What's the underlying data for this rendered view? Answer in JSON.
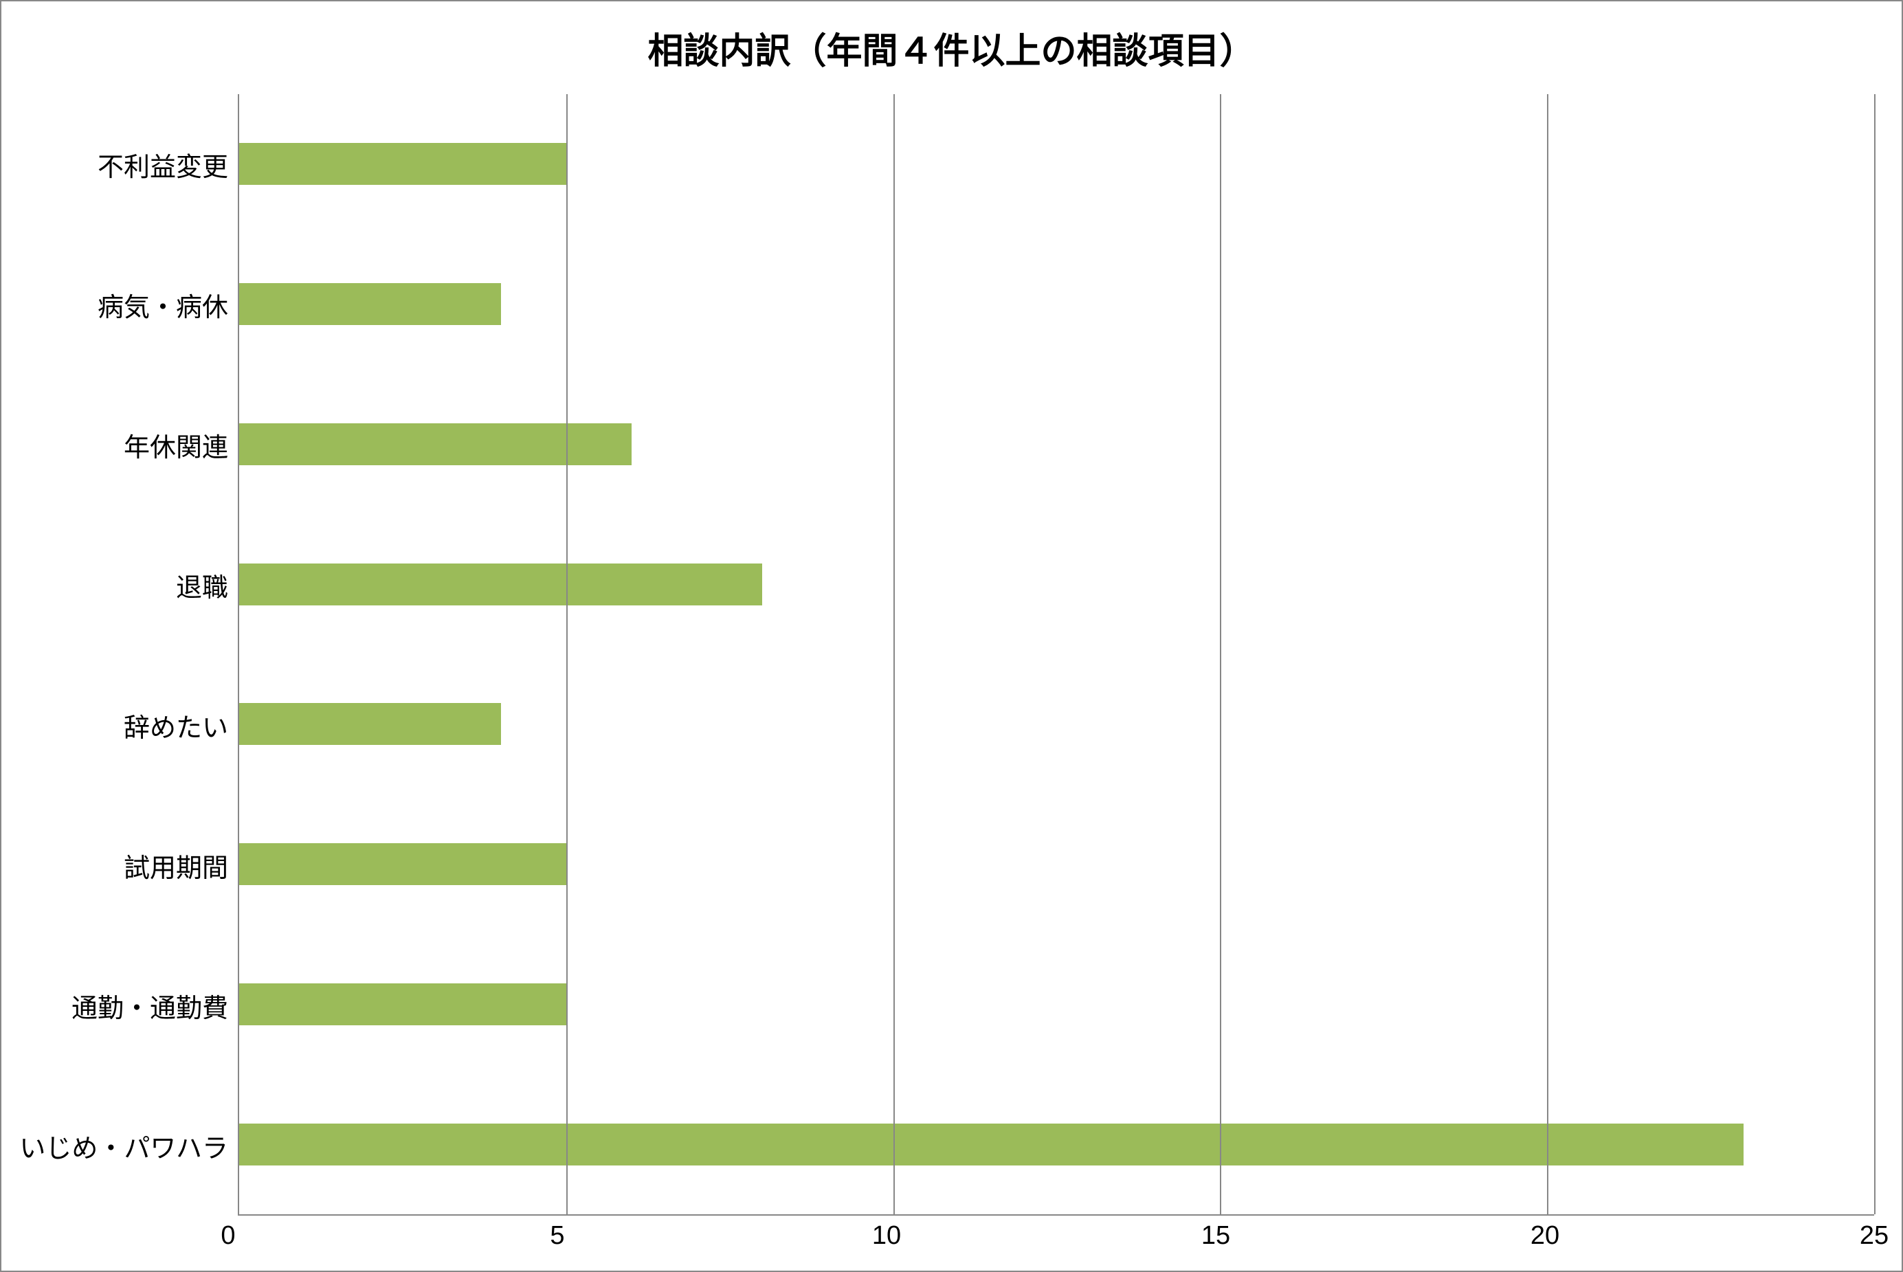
{
  "chart": {
    "type": "bar-horizontal",
    "title": "相談内訳（年間４件以上の相談項目）",
    "title_fontsize": 52,
    "label_fontsize": 38,
    "tick_fontsize": 38,
    "background_color": "#ffffff",
    "border_color": "#888888",
    "grid_color": "#878787",
    "bar_color": "#9bbb59",
    "text_color": "#000000",
    "xlim": [
      0,
      25
    ],
    "xtick_step": 5,
    "xticks": [
      0,
      5,
      10,
      15,
      20,
      25
    ],
    "bar_height_ratio": 0.3,
    "categories": [
      "不利益変更",
      "病気・病休",
      "年休関連",
      "退職",
      "辞めたい",
      "試用期間",
      "通勤・通勤費",
      "いじめ・パワハラ"
    ],
    "values": [
      5,
      4,
      6,
      8,
      4,
      5,
      5,
      23
    ]
  }
}
